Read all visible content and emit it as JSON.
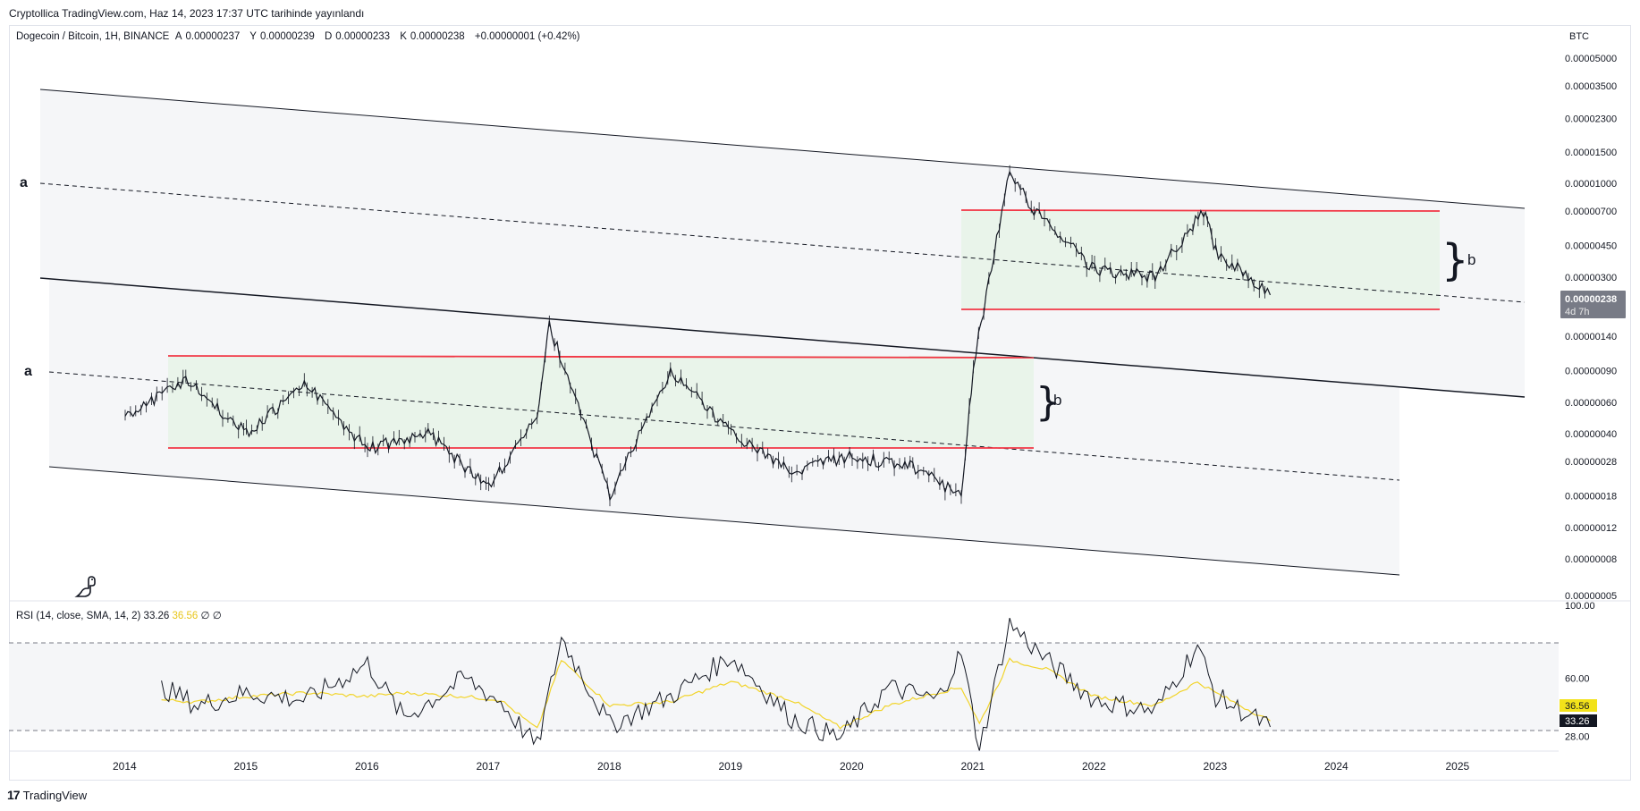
{
  "header": {
    "published": "Cryptollica TradingView.com, Haz 14, 2023 17:37 UTC tarihinde yayınlandı"
  },
  "legend": {
    "symbol": "Dogecoin / Bitcoin, 1H, BINANCE",
    "open_label": "A",
    "open": "0.00000237",
    "high_label": "Y",
    "high": "0.00000239",
    "low_label": "D",
    "low": "0.00000233",
    "close_label": "K",
    "close": "0.00000238",
    "change": "+0.00000001 (+0.42%)"
  },
  "currency": "BTC",
  "price_axis": {
    "labels": [
      "0.00005000",
      "0.00003500",
      "0.00002300",
      "0.00001500",
      "0.00001000",
      "0.00000700",
      "0.00000450",
      "0.00000300",
      "0.00000140",
      "0.00000090",
      "0.00000060",
      "0.00000040",
      "0.00000028",
      "0.00000018",
      "0.00000012",
      "0.00000008",
      "0.00000005"
    ],
    "current_price": "0.00000238",
    "countdown": "4d 7h"
  },
  "time_axis": {
    "labels": [
      "2014",
      "2015",
      "2016",
      "2017",
      "2018",
      "2019",
      "2020",
      "2021",
      "2022",
      "2023",
      "2024",
      "2025"
    ]
  },
  "annotations": {
    "a_upper": "a",
    "a_lower": "a",
    "b_upper": "b",
    "b_lower": "b",
    "brace": "}"
  },
  "rsi": {
    "legend_name": "RSI (14, close, SMA, 14, 2)",
    "value": "33.26",
    "sma_value": "36.56",
    "extra1": "∅",
    "extra2": "∅",
    "axis_labels": [
      "100.00",
      "60.00",
      "28.00"
    ],
    "badge_sma": "36.56",
    "badge_rsi": "33.26"
  },
  "footer": {
    "brand": "TradingView",
    "logo_mark": "17"
  },
  "colors": {
    "candle": "#131722",
    "red_line": "#f23645",
    "range_fill": "#e8f3e8",
    "rsi_line": "#131722",
    "rsi_sma": "#f2d42a",
    "current_badge": "#787b86"
  },
  "chart_data": {
    "type": "line",
    "title": "Dogecoin / Bitcoin, 1H, BINANCE",
    "y_scale": "log",
    "ylim": [
      5e-08,
      5e-05
    ],
    "x": [
      "2014",
      "2014.5",
      "2015",
      "2015.5",
      "2016",
      "2016.5",
      "2017",
      "2017.4",
      "2017.5",
      "2018",
      "2018.5",
      "2019",
      "2019.5",
      "2020",
      "2020.5",
      "2020.9",
      "2021",
      "2021.3",
      "2021.5",
      "2022",
      "2022.5",
      "2022.9",
      "2023",
      "2023.45"
    ],
    "series": [
      {
        "values": [
          5e-07,
          8e-07,
          4e-07,
          7.5e-07,
          3.3e-07,
          4e-07,
          2e-07,
          5e-07,
          1.6e-06,
          1.8e-07,
          9e-07,
          4e-07,
          2.5e-07,
          3e-07,
          2.6e-07,
          1.8e-07,
          9.5e-07,
          1.2e-05,
          7e-06,
          3.3e-06,
          3e-06,
          7e-06,
          4.2e-06,
          2.38e-06
        ]
      }
    ],
    "levels": {
      "upper_range": [
        2.8e-06,
        7.2e-06
      ],
      "lower_range": [
        3.5e-07,
        1.1e-06
      ]
    },
    "rsi_series": {
      "ylim": [
        20,
        100
      ],
      "x": [
        "2014.3",
        "2014.6",
        "2015",
        "2015.5",
        "2016",
        "2016.3",
        "2016.8",
        "2017.1",
        "2017.4",
        "2017.6",
        "2018",
        "2018.5",
        "2019",
        "2019.5",
        "2019.9",
        "2020.3",
        "2020.7",
        "2020.9",
        "2021.05",
        "2021.3",
        "2021.6",
        "2022",
        "2022.5",
        "2022.85",
        "2023",
        "2023.45"
      ],
      "rsi": [
        55,
        45,
        52,
        48,
        68,
        38,
        60,
        47,
        22,
        82,
        34,
        50,
        72,
        38,
        27,
        55,
        48,
        74,
        21,
        90,
        70,
        48,
        42,
        78,
        50,
        33.26
      ],
      "sma": [
        48,
        47,
        50,
        52,
        50,
        52,
        50,
        48,
        32,
        70,
        45,
        47,
        58,
        48,
        33,
        45,
        52,
        55,
        35,
        70,
        65,
        50,
        45,
        58,
        52,
        36.56
      ]
    }
  }
}
